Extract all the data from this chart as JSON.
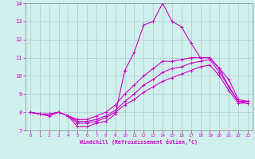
{
  "title": "",
  "xlabel": "Windchill (Refroidissement éolien,°C)",
  "ylabel": "",
  "bg_color": "#cff0ec",
  "line_color": "#cc00cc",
  "grid_color": "#aacccc",
  "xlim": [
    -0.5,
    23.5
  ],
  "ylim": [
    7,
    14
  ],
  "xticks": [
    0,
    1,
    2,
    3,
    4,
    5,
    6,
    7,
    8,
    9,
    10,
    11,
    12,
    13,
    14,
    15,
    16,
    17,
    18,
    19,
    20,
    21,
    22,
    23
  ],
  "yticks": [
    7,
    8,
    9,
    10,
    11,
    12,
    13,
    14
  ],
  "series": [
    [
      8.0,
      7.9,
      7.9,
      8.0,
      7.8,
      7.2,
      7.2,
      7.4,
      7.5,
      7.9,
      10.3,
      11.3,
      12.8,
      13.0,
      14.0,
      13.0,
      12.7,
      11.8,
      11.0,
      11.0,
      10.4,
      9.4,
      8.6,
      8.6
    ],
    [
      8.0,
      7.9,
      7.9,
      8.0,
      7.8,
      7.6,
      7.6,
      7.8,
      8.0,
      8.4,
      9.0,
      9.5,
      10.0,
      10.4,
      10.8,
      10.8,
      10.9,
      11.0,
      11.0,
      11.0,
      10.4,
      9.8,
      8.7,
      8.6
    ],
    [
      8.0,
      7.9,
      7.8,
      8.0,
      7.8,
      7.5,
      7.5,
      7.6,
      7.8,
      8.1,
      8.6,
      9.0,
      9.5,
      9.8,
      10.2,
      10.4,
      10.5,
      10.7,
      10.8,
      10.9,
      10.2,
      9.4,
      8.6,
      8.5
    ],
    [
      8.0,
      7.9,
      7.8,
      8.0,
      7.8,
      7.4,
      7.4,
      7.5,
      7.7,
      8.0,
      8.4,
      8.7,
      9.1,
      9.4,
      9.7,
      9.9,
      10.1,
      10.3,
      10.5,
      10.6,
      10.0,
      9.2,
      8.5,
      8.5
    ]
  ]
}
